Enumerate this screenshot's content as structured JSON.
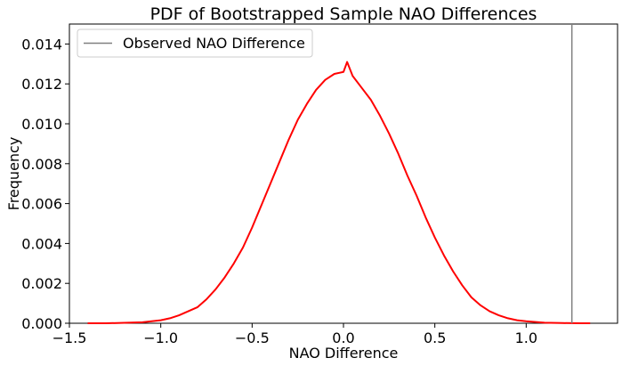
{
  "chart_data": {
    "type": "line",
    "title": "PDF of Bootstrapped Sample NAO Differences",
    "xlabel": "NAO Difference",
    "ylabel": "Frequency",
    "xlim": [
      -1.5,
      1.5
    ],
    "ylim": [
      0,
      0.015
    ],
    "xticks": [
      -1.5,
      -1.0,
      -0.5,
      0.0,
      0.5,
      1.0
    ],
    "xtick_labels": [
      "−1.5",
      "−1.0",
      "−0.5",
      "0.0",
      "0.5",
      "1.0"
    ],
    "yticks": [
      0,
      0.002,
      0.004,
      0.006,
      0.008,
      0.01,
      0.012,
      0.014
    ],
    "ytick_labels": [
      "0.000",
      "0.002",
      "0.004",
      "0.006",
      "0.008",
      "0.010",
      "0.012",
      "0.014"
    ],
    "grid": false,
    "legend_position": "top-left",
    "series": [
      {
        "type": "line",
        "color": "#ff0000",
        "x": [
          -1.4,
          -1.3,
          -1.2,
          -1.1,
          -1.05,
          -1.0,
          -0.95,
          -0.9,
          -0.85,
          -0.8,
          -0.75,
          -0.7,
          -0.65,
          -0.6,
          -0.55,
          -0.5,
          -0.45,
          -0.4,
          -0.35,
          -0.3,
          -0.25,
          -0.2,
          -0.15,
          -0.1,
          -0.05,
          0.0,
          0.02,
          0.05,
          0.1,
          0.15,
          0.2,
          0.25,
          0.3,
          0.35,
          0.4,
          0.45,
          0.5,
          0.55,
          0.6,
          0.65,
          0.7,
          0.75,
          0.8,
          0.85,
          0.9,
          0.95,
          1.0,
          1.1,
          1.2,
          1.3,
          1.35
        ],
        "values": [
          0.0,
          0.0,
          2e-05,
          5e-05,
          0.0001,
          0.00015,
          0.00025,
          0.0004,
          0.0006,
          0.0008,
          0.0012,
          0.0017,
          0.0023,
          0.003,
          0.0038,
          0.0048,
          0.0059,
          0.007,
          0.0081,
          0.0092,
          0.0102,
          0.011,
          0.0117,
          0.0122,
          0.0125,
          0.0126,
          0.0131,
          0.0124,
          0.0118,
          0.0112,
          0.0104,
          0.0095,
          0.0085,
          0.0074,
          0.0064,
          0.0053,
          0.0043,
          0.0034,
          0.0026,
          0.0019,
          0.0013,
          0.0009,
          0.0006,
          0.0004,
          0.00025,
          0.00015,
          0.0001,
          3e-05,
          1e-05,
          0.0,
          0.0
        ]
      }
    ],
    "reference_line": {
      "orientation": "vertical",
      "x": 1.25,
      "color": "#808080",
      "label": "Observed NAO Difference"
    }
  }
}
